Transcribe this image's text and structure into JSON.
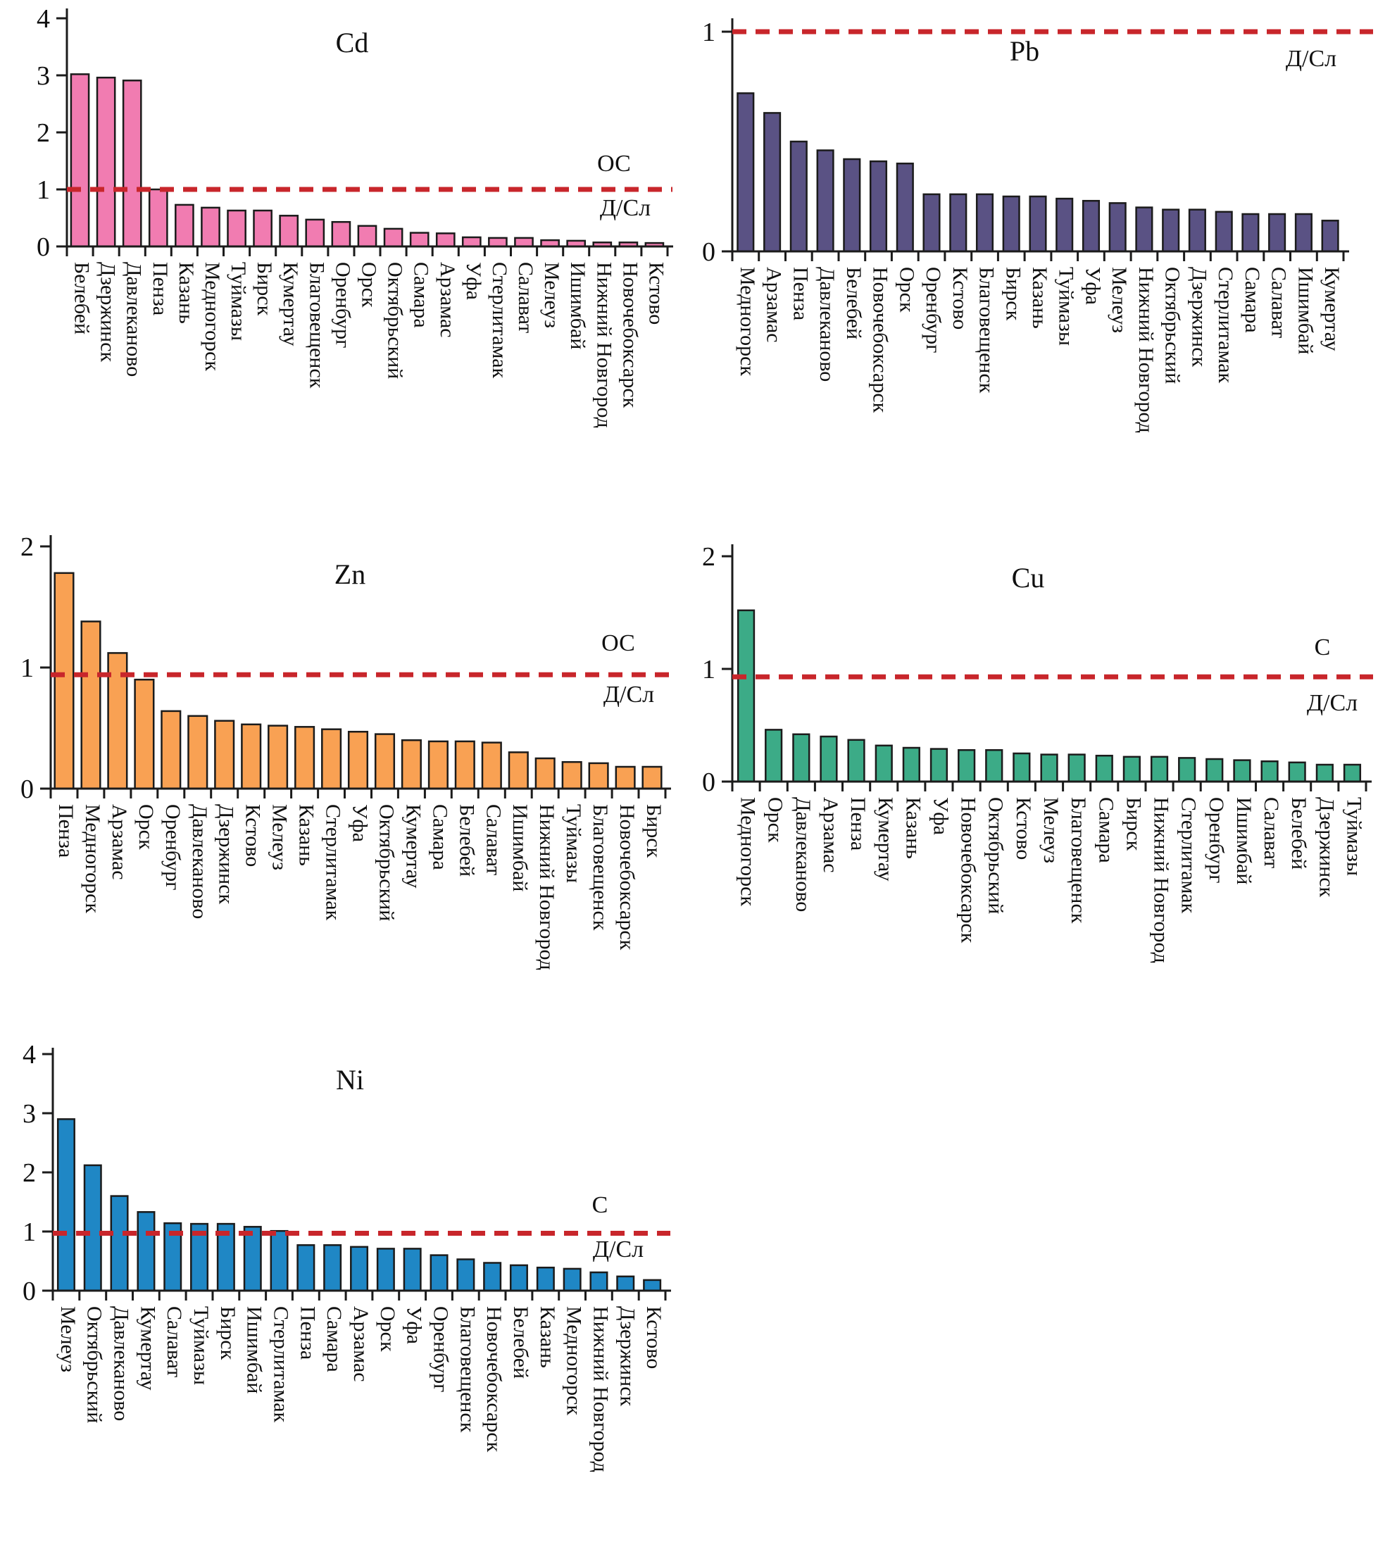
{
  "figure": {
    "background": "#ffffff",
    "axis_color": "#1b1b1b",
    "bar_outline_color": "#1b1b1b",
    "threshold_line_color": "#c8262b"
  },
  "chart_data": [
    {
      "id": "cd",
      "type": "bar",
      "title": "Cd",
      "bar_color": "#f17cb1",
      "ylim": [
        0,
        4
      ],
      "y_ticks": [
        0,
        1,
        2,
        3,
        4
      ],
      "y_tick_labels": [
        "0",
        "1",
        "2",
        "3",
        "4"
      ],
      "grid": false,
      "threshold": {
        "value": 1.0,
        "label_above": "ОС",
        "label_below": "Д/Сл",
        "line_color": "#c8262b"
      },
      "categories": [
        "Белебей",
        "Дзержинск",
        "Давлеканово",
        "Пенза",
        "Казань",
        "Медногорск",
        "Туймазы",
        "Бирск",
        "Кумертау",
        "Благовещенск",
        "Оренбург",
        "Орск",
        "Октябрьский",
        "Самара",
        "Арзамас",
        "Уфа",
        "Стерлитамак",
        "Салават",
        "Мелеуз",
        "Ишимбай",
        "Нижний Новгород",
        "Новочебоксарск",
        "Кстово"
      ],
      "values": [
        3.02,
        2.96,
        2.91,
        1.0,
        0.73,
        0.68,
        0.63,
        0.63,
        0.54,
        0.47,
        0.43,
        0.36,
        0.31,
        0.24,
        0.23,
        0.16,
        0.15,
        0.15,
        0.11,
        0.1,
        0.07,
        0.07,
        0.06
      ]
    },
    {
      "id": "pb",
      "type": "bar",
      "title": "Pb",
      "bar_color": "#5a5284",
      "ylim": [
        0,
        1
      ],
      "y_ticks": [
        0,
        1
      ],
      "y_tick_labels": [
        "0",
        "1"
      ],
      "grid": false,
      "threshold": {
        "value": 1.0,
        "label_above": "",
        "label_below": "Д/Сл",
        "line_color": "#c8262b"
      },
      "categories": [
        "Медногорск",
        "Арзамас",
        "Пенза",
        "Давлеканово",
        "Белебей",
        "Новочебоксарск",
        "Орск",
        "Оренбург",
        "Кстово",
        "Благовещенск",
        "Бирск",
        "Казань",
        "Туймазы",
        "Уфа",
        "Мелеуз",
        "Нижний Новгород",
        "Октябрьский",
        "Дзержинск",
        "Стерлитамак",
        "Самара",
        "Салават",
        "Ишимбай",
        "Кумертау"
      ],
      "values": [
        0.72,
        0.63,
        0.5,
        0.46,
        0.42,
        0.41,
        0.4,
        0.26,
        0.26,
        0.26,
        0.25,
        0.25,
        0.24,
        0.23,
        0.22,
        0.2,
        0.19,
        0.19,
        0.18,
        0.17,
        0.17,
        0.17,
        0.14
      ]
    },
    {
      "id": "zn",
      "type": "bar",
      "title": "Zn",
      "bar_color": "#f9a153",
      "ylim": [
        0,
        2
      ],
      "y_ticks": [
        0,
        1,
        2
      ],
      "y_tick_labels": [
        "0",
        "1",
        "2"
      ],
      "grid": false,
      "threshold": {
        "value": 0.94,
        "label_above": "ОС",
        "label_below": "Д/Сл",
        "line_color": "#c8262b"
      },
      "categories": [
        "Пенза",
        "Медногорск",
        "Арзамас",
        "Орск",
        "Оренбург",
        "Давлеканово",
        "Дзержинск",
        "Кстово",
        "Мелеуз",
        "Казань",
        "Стерлитамак",
        "Уфа",
        "Октябрьский",
        "Кумертау",
        "Самара",
        "Белебей",
        "Салават",
        "Ишимбай",
        "Нижний Новгород",
        "Туймазы",
        "Благовещенск",
        "Новочебоксарск",
        "Бирск"
      ],
      "values": [
        1.78,
        1.38,
        1.12,
        0.9,
        0.64,
        0.6,
        0.56,
        0.53,
        0.52,
        0.51,
        0.49,
        0.47,
        0.45,
        0.4,
        0.39,
        0.39,
        0.38,
        0.3,
        0.25,
        0.22,
        0.21,
        0.18,
        0.18
      ]
    },
    {
      "id": "cu",
      "type": "bar",
      "title": "Cu",
      "bar_color": "#3cab87",
      "ylim": [
        0,
        2
      ],
      "y_ticks": [
        0,
        1,
        2
      ],
      "y_tick_labels": [
        "0",
        "1",
        "2"
      ],
      "grid": false,
      "threshold": {
        "value": 0.93,
        "label_above": "С",
        "label_below": "Д/Сл",
        "line_color": "#c8262b"
      },
      "categories": [
        "Медногорск",
        "Орск",
        "Давлеканово",
        "Арзамас",
        "Пенза",
        "Кумертау",
        "Казань",
        "Уфа",
        "Новочебоксарск",
        "Октябрьский",
        "Кстово",
        "Мелеуз",
        "Благовещенск",
        "Самара",
        "Бирск",
        "Нижний Новгород",
        "Стерлитамак",
        "Оренбург",
        "Ишимбай",
        "Салават",
        "Белебей",
        "Дзержинск",
        "Туймазы"
      ],
      "values": [
        1.52,
        0.46,
        0.42,
        0.4,
        0.37,
        0.32,
        0.3,
        0.29,
        0.28,
        0.28,
        0.25,
        0.24,
        0.24,
        0.23,
        0.22,
        0.22,
        0.21,
        0.2,
        0.19,
        0.18,
        0.17,
        0.15,
        0.15
      ]
    },
    {
      "id": "ni",
      "type": "bar",
      "title": "Ni",
      "bar_color": "#1f87c5",
      "ylim": [
        0,
        4
      ],
      "y_ticks": [
        0,
        1,
        2,
        3,
        4
      ],
      "y_tick_labels": [
        "0",
        "1",
        "2",
        "3",
        "4"
      ],
      "grid": false,
      "threshold": {
        "value": 0.97,
        "label_above": "С",
        "label_below": "Д/Сл",
        "line_color": "#c8262b"
      },
      "categories": [
        "Мелеуз",
        "Октябрьский",
        "Давлеканово",
        "Кумертау",
        "Салават",
        "Туймазы",
        "Бирск",
        "Ишимбай",
        "Стерлитамак",
        "Пенза",
        "Самара",
        "Арзамас",
        "Орск",
        "Уфа",
        "Оренбург",
        "Благовещенск",
        "Новочебоксарск",
        "Белебей",
        "Казань",
        "Медногорск",
        "Нижний Новгород",
        "Дзержинск",
        "Кстово"
      ],
      "values": [
        2.9,
        2.12,
        1.6,
        1.33,
        1.14,
        1.13,
        1.13,
        1.08,
        1.01,
        0.77,
        0.77,
        0.74,
        0.71,
        0.71,
        0.6,
        0.53,
        0.47,
        0.43,
        0.39,
        0.37,
        0.31,
        0.24,
        0.18
      ]
    }
  ]
}
